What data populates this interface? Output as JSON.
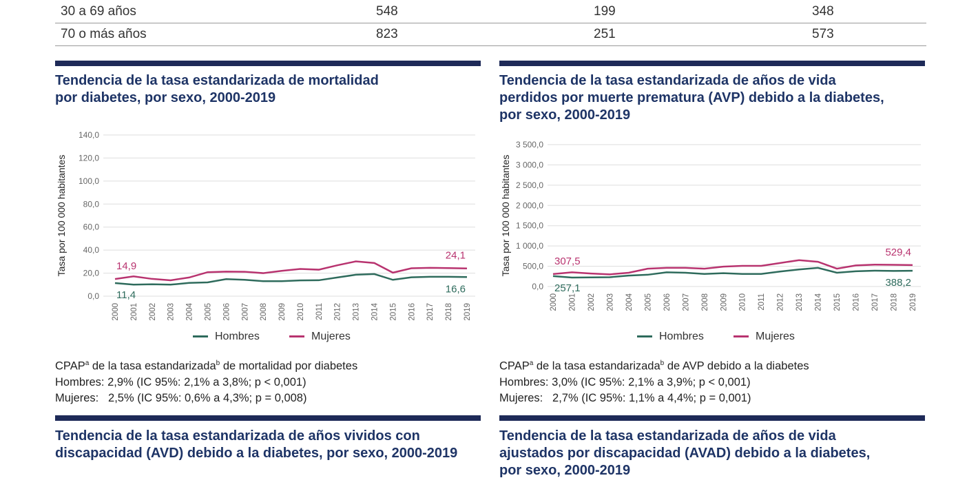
{
  "table": {
    "rows": [
      {
        "label": "30 a 69 años",
        "values": [
          "548",
          "199",
          "348"
        ]
      },
      {
        "label": "70 o más años",
        "values": [
          "823",
          "251",
          "573"
        ]
      }
    ]
  },
  "colors": {
    "hombres": "#2e6b5c",
    "mujeres": "#b8336f",
    "rule": "#1e2a58",
    "title": "#1e3466"
  },
  "chart1": {
    "title_lines": [
      "Tendencia de la tasa estandarizada de mortalidad",
      "por diabetes, por sexo, 2000-2019"
    ],
    "note": {
      "line1_pre": "CPAP",
      "sup_a": "a",
      "line1_mid": " de la tasa estandarizada",
      "sup_b": "b",
      "line1_post": " de mortalidad por diabetes",
      "hombres": "Hombres: 2,9% (IC 95%: 2,1% a 3,8%; p < 0,001)",
      "mujeres": "Mujeres:   2,5% (IC 95%: 0,6% a 4,3%; p = 0,008)"
    },
    "legend": [
      "Hombres",
      "Mujeres"
    ]
  },
  "chart2": {
    "title_lines": [
      "Tendencia de la tasa estandarizada de años de vida",
      "perdidos por muerte prematura (AVP) debido a la diabetes,",
      "por sexo, 2000-2019"
    ],
    "note": {
      "line1_pre": "CPAP",
      "sup_a": "a",
      "line1_mid": " de la tasa estandarizada",
      "sup_b": "b",
      "line1_post": " de AVP debido a la diabetes",
      "hombres": "Hombres: 3,0% (IC 95%: 2,1% a 3,9%; p < 0,001)",
      "mujeres": "Mujeres:   2,7% (IC 95%: 1,1% a 4,4%; p = 0,001)"
    },
    "legend": [
      "Hombres",
      "Mujeres"
    ]
  },
  "chart3": {
    "title_lines": [
      "Tendencia de la tasa estandarizada de años vividos con",
      "discapacidad (AVD) debido a la diabetes, por sexo, 2000-2019"
    ]
  },
  "chart4": {
    "title_lines": [
      "Tendencia de la tasa estandarizada de años de vida",
      "ajustados por discapacidad (AVAD) debido a la diabetes,",
      "por sexo, 2000-2019"
    ]
  },
  "chart_data": [
    {
      "type": "line",
      "ylabel": "Tasa por 100 000 habitantes",
      "ylim": [
        0,
        140
      ],
      "yticks": [
        "0,0",
        "20,0",
        "40,0",
        "60,0",
        "80,0",
        "100,0",
        "120,0",
        "140,0"
      ],
      "x": [
        "2000",
        "2001",
        "2002",
        "2003",
        "2004",
        "2005",
        "2006",
        "2007",
        "2008",
        "2009",
        "2010",
        "2011",
        "2012",
        "2013",
        "2014",
        "2015",
        "2016",
        "2017",
        "2018",
        "2019"
      ],
      "grid": true,
      "legend_position": "bottom",
      "series": [
        {
          "name": "Hombres",
          "values": [
            11.4,
            10.0,
            10.3,
            10.0,
            11.5,
            12.0,
            14.8,
            14.2,
            13.0,
            13.0,
            13.7,
            13.8,
            16.2,
            18.6,
            19.2,
            14.2,
            16.4,
            16.8,
            16.8,
            16.6
          ],
          "start_label": "11,4",
          "end_label": "16,6"
        },
        {
          "name": "Mujeres",
          "values": [
            14.9,
            17.2,
            15.0,
            13.8,
            16.2,
            20.8,
            21.3,
            21.2,
            20.0,
            22.0,
            23.6,
            23.0,
            26.8,
            30.2,
            28.8,
            20.4,
            24.2,
            24.6,
            24.4,
            24.1
          ],
          "start_label": "14,9",
          "end_label": "24,1"
        }
      ]
    },
    {
      "type": "line",
      "ylabel": "Tasa por 100 000 habitantes",
      "ylim": [
        0,
        3500
      ],
      "yticks": [
        "0,0",
        "500,0",
        "1 000,0",
        "1 500,0",
        "2 000,0",
        "2 500,0",
        "3 000,0",
        "3 500,0"
      ],
      "x": [
        "2000",
        "2001",
        "2002",
        "2003",
        "2004",
        "2005",
        "2006",
        "2007",
        "2008",
        "2009",
        "2010",
        "2011",
        "2012",
        "2013",
        "2014",
        "2015",
        "2016",
        "2017",
        "2018",
        "2019"
      ],
      "grid": true,
      "legend_position": "bottom",
      "series": [
        {
          "name": "Hombres",
          "values": [
            257.1,
            220,
            225,
            230,
            270,
            290,
            350,
            340,
            310,
            330,
            310,
            310,
            370,
            420,
            460,
            340,
            375,
            390,
            385,
            388.2
          ],
          "start_label": "257,1",
          "end_label": "388,2"
        },
        {
          "name": "Mujeres",
          "values": [
            307.5,
            350,
            320,
            300,
            340,
            440,
            460,
            460,
            440,
            490,
            510,
            510,
            580,
            650,
            610,
            440,
            520,
            540,
            535,
            529.4
          ],
          "start_label": "307,5",
          "end_label": "529,4"
        }
      ]
    }
  ]
}
